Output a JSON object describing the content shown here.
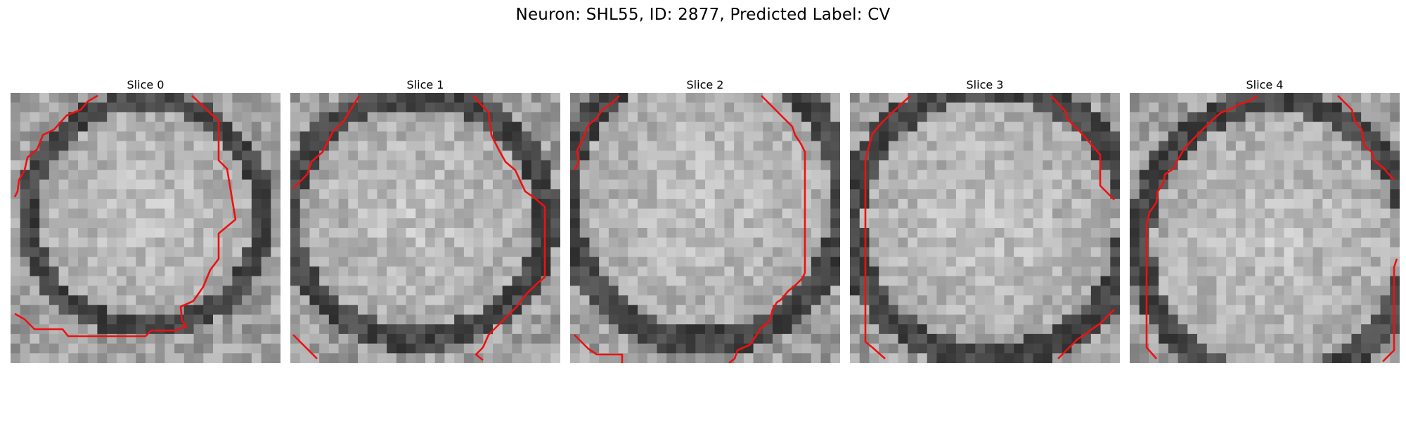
{
  "figure": {
    "title": "Neuron: SHL55, ID: 2877, Predicted Label: CV"
  },
  "slices": [
    {
      "label": "Slice 0"
    },
    {
      "label": "Slice 1"
    },
    {
      "label": "Slice 2"
    },
    {
      "label": "Slice 3"
    },
    {
      "label": "Slice 4"
    }
  ],
  "colors": {
    "contour": "#ee1111",
    "background": "#ffffff"
  }
}
